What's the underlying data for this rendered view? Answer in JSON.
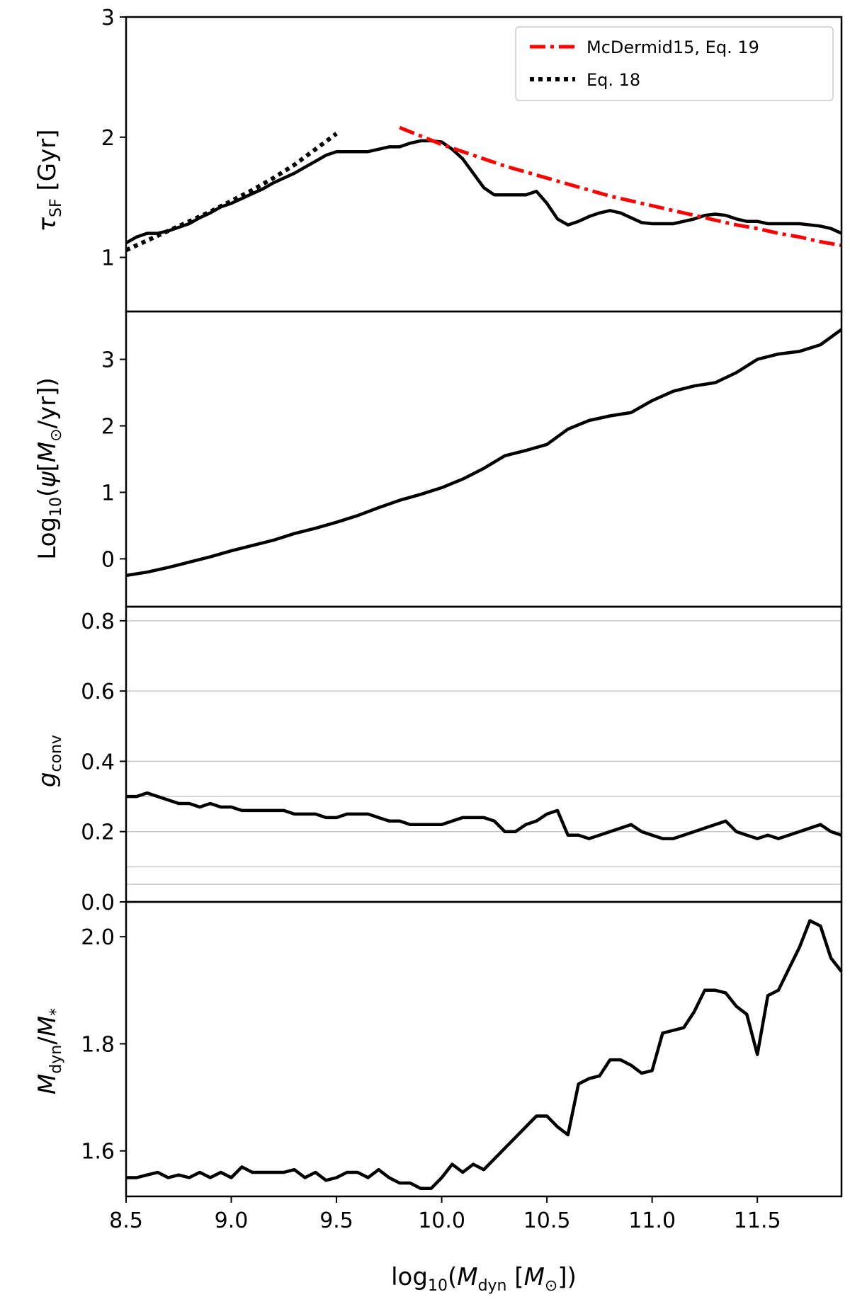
{
  "chart_data": [
    {
      "type": "line",
      "panel": "tau_sf",
      "ylabel": "τ_SF [Gyr]",
      "ylim": [
        0.55,
        3.0
      ],
      "xlim": [
        8.5,
        11.9
      ],
      "yticks": [
        1,
        2,
        3
      ],
      "grid": false,
      "legend_position": "top-right",
      "series": [
        {
          "name": "",
          "color": "#000000",
          "style": "solid",
          "x": [
            8.5,
            8.55,
            8.6,
            8.65,
            8.7,
            8.75,
            8.8,
            8.85,
            8.9,
            8.95,
            9.0,
            9.05,
            9.1,
            9.15,
            9.2,
            9.25,
            9.3,
            9.35,
            9.4,
            9.45,
            9.5,
            9.55,
            9.6,
            9.65,
            9.7,
            9.75,
            9.8,
            9.85,
            9.9,
            9.95,
            10.0,
            10.05,
            10.1,
            10.15,
            10.2,
            10.25,
            10.3,
            10.35,
            10.4,
            10.45,
            10.5,
            10.55,
            10.6,
            10.65,
            10.7,
            10.75,
            10.8,
            10.85,
            10.9,
            10.95,
            11.0,
            11.05,
            11.1,
            11.15,
            11.2,
            11.25,
            11.3,
            11.35,
            11.4,
            11.45,
            11.5,
            11.55,
            11.6,
            11.65,
            11.7,
            11.75,
            11.8,
            11.85,
            11.9
          ],
          "y": [
            1.12,
            1.17,
            1.2,
            1.2,
            1.22,
            1.25,
            1.28,
            1.33,
            1.37,
            1.42,
            1.45,
            1.49,
            1.53,
            1.57,
            1.62,
            1.66,
            1.7,
            1.75,
            1.8,
            1.85,
            1.88,
            1.88,
            1.88,
            1.88,
            1.9,
            1.92,
            1.92,
            1.95,
            1.97,
            1.97,
            1.96,
            1.9,
            1.82,
            1.7,
            1.58,
            1.52,
            1.52,
            1.52,
            1.52,
            1.55,
            1.45,
            1.32,
            1.27,
            1.3,
            1.34,
            1.37,
            1.39,
            1.37,
            1.33,
            1.29,
            1.28,
            1.28,
            1.28,
            1.3,
            1.32,
            1.35,
            1.36,
            1.35,
            1.32,
            1.3,
            1.3,
            1.28,
            1.28,
            1.28,
            1.28,
            1.27,
            1.26,
            1.24,
            1.2
          ]
        },
        {
          "name": "McDermid15, Eq. 19",
          "color": "#ff0000",
          "style": "dashdot",
          "x": [
            9.8,
            9.9,
            10.0,
            10.1,
            10.2,
            10.3,
            10.4,
            10.5,
            10.6,
            10.7,
            10.8,
            10.9,
            11.0,
            11.1,
            11.2,
            11.3,
            11.4,
            11.5,
            11.6,
            11.7,
            11.8,
            11.9
          ],
          "y": [
            2.08,
            2.01,
            1.94,
            1.88,
            1.82,
            1.76,
            1.71,
            1.66,
            1.61,
            1.56,
            1.51,
            1.47,
            1.43,
            1.39,
            1.35,
            1.31,
            1.27,
            1.24,
            1.2,
            1.17,
            1.13,
            1.1
          ]
        },
        {
          "name": "Eq. 18",
          "color": "#000000",
          "style": "dotted",
          "x": [
            8.5,
            8.6,
            8.7,
            8.8,
            8.9,
            9.0,
            9.1,
            9.2,
            9.3,
            9.4,
            9.5
          ],
          "y": [
            1.06,
            1.14,
            1.22,
            1.3,
            1.38,
            1.47,
            1.56,
            1.66,
            1.77,
            1.9,
            2.03
          ]
        }
      ]
    },
    {
      "type": "line",
      "panel": "log_sfr",
      "ylabel": "Log10(ψ[M⊙/yr])",
      "ylim": [
        -0.72,
        3.72
      ],
      "xlim": [
        8.5,
        11.9
      ],
      "yticks": [
        0,
        1,
        2,
        3
      ],
      "grid": false,
      "series": [
        {
          "name": "",
          "color": "#000000",
          "style": "solid",
          "x": [
            8.5,
            8.6,
            8.7,
            8.8,
            8.9,
            9.0,
            9.1,
            9.2,
            9.3,
            9.4,
            9.5,
            9.6,
            9.7,
            9.8,
            9.9,
            10.0,
            10.1,
            10.2,
            10.3,
            10.4,
            10.5,
            10.6,
            10.7,
            10.8,
            10.9,
            11.0,
            11.1,
            11.2,
            11.3,
            11.4,
            11.5,
            11.6,
            11.7,
            11.8,
            11.9
          ],
          "y": [
            -0.25,
            -0.2,
            -0.13,
            -0.05,
            0.03,
            0.12,
            0.2,
            0.28,
            0.38,
            0.46,
            0.55,
            0.65,
            0.77,
            0.88,
            0.97,
            1.07,
            1.2,
            1.36,
            1.55,
            1.63,
            1.72,
            1.95,
            2.08,
            2.15,
            2.2,
            2.38,
            2.52,
            2.6,
            2.65,
            2.8,
            3.0,
            3.08,
            3.12,
            3.22,
            3.45
          ]
        }
      ]
    },
    {
      "type": "line",
      "panel": "g_conv",
      "ylabel": "g_conv",
      "ylim": [
        0.0,
        0.84
      ],
      "xlim": [
        8.5,
        11.9
      ],
      "yticks": [
        0.0,
        0.2,
        0.4,
        0.6,
        0.8
      ],
      "grid": true,
      "hlines": [
        0.05,
        0.1,
        0.2,
        0.3,
        0.4,
        0.6,
        0.8
      ],
      "series": [
        {
          "name": "",
          "color": "#000000",
          "style": "solid",
          "x": [
            8.5,
            8.55,
            8.6,
            8.65,
            8.7,
            8.75,
            8.8,
            8.85,
            8.9,
            8.95,
            9.0,
            9.05,
            9.1,
            9.15,
            9.2,
            9.25,
            9.3,
            9.35,
            9.4,
            9.45,
            9.5,
            9.55,
            9.6,
            9.65,
            9.7,
            9.75,
            9.8,
            9.85,
            9.9,
            9.95,
            10.0,
            10.05,
            10.1,
            10.15,
            10.2,
            10.25,
            10.3,
            10.35,
            10.4,
            10.45,
            10.5,
            10.55,
            10.6,
            10.65,
            10.7,
            10.75,
            10.8,
            10.85,
            10.9,
            10.95,
            11.0,
            11.05,
            11.1,
            11.15,
            11.2,
            11.25,
            11.3,
            11.35,
            11.4,
            11.45,
            11.5,
            11.55,
            11.6,
            11.65,
            11.7,
            11.75,
            11.8,
            11.85,
            11.9
          ],
          "y": [
            0.3,
            0.3,
            0.31,
            0.3,
            0.29,
            0.28,
            0.28,
            0.27,
            0.28,
            0.27,
            0.27,
            0.26,
            0.26,
            0.26,
            0.26,
            0.26,
            0.25,
            0.25,
            0.25,
            0.24,
            0.24,
            0.25,
            0.25,
            0.25,
            0.24,
            0.23,
            0.23,
            0.22,
            0.22,
            0.22,
            0.22,
            0.23,
            0.24,
            0.24,
            0.24,
            0.23,
            0.2,
            0.2,
            0.22,
            0.23,
            0.25,
            0.26,
            0.19,
            0.19,
            0.18,
            0.19,
            0.2,
            0.21,
            0.22,
            0.2,
            0.19,
            0.18,
            0.18,
            0.19,
            0.2,
            0.21,
            0.22,
            0.23,
            0.2,
            0.19,
            0.18,
            0.19,
            0.18,
            0.19,
            0.2,
            0.21,
            0.22,
            0.2,
            0.19
          ]
        }
      ]
    },
    {
      "type": "line",
      "panel": "mass_ratio",
      "ylabel": "M_dyn/M_*",
      "ylim": [
        1.515,
        2.065
      ],
      "xlim": [
        8.5,
        11.9
      ],
      "yticks": [
        1.6,
        1.8,
        2.0
      ],
      "grid": false,
      "xlabel": "log10(M_dyn [M⊙])",
      "xticks": [
        8.5,
        9.0,
        9.5,
        10.0,
        10.5,
        11.0,
        11.5
      ],
      "xtick_labels": [
        "8.5",
        "9.0",
        "9.5",
        "10.0",
        "10.5",
        "11.0",
        "11.5"
      ],
      "series": [
        {
          "name": "",
          "color": "#000000",
          "style": "solid",
          "x": [
            8.5,
            8.55,
            8.6,
            8.65,
            8.7,
            8.75,
            8.8,
            8.85,
            8.9,
            8.95,
            9.0,
            9.05,
            9.1,
            9.15,
            9.2,
            9.25,
            9.3,
            9.35,
            9.4,
            9.45,
            9.5,
            9.55,
            9.6,
            9.65,
            9.7,
            9.75,
            9.8,
            9.85,
            9.9,
            9.95,
            10.0,
            10.05,
            10.1,
            10.15,
            10.2,
            10.25,
            10.3,
            10.35,
            10.4,
            10.45,
            10.5,
            10.55,
            10.6,
            10.65,
            10.7,
            10.75,
            10.8,
            10.85,
            10.9,
            10.95,
            11.0,
            11.05,
            11.1,
            11.15,
            11.2,
            11.25,
            11.3,
            11.35,
            11.4,
            11.45,
            11.5,
            11.55,
            11.6,
            11.65,
            11.7,
            11.75,
            11.8,
            11.85,
            11.9
          ],
          "y": [
            1.55,
            1.55,
            1.555,
            1.56,
            1.55,
            1.555,
            1.55,
            1.56,
            1.55,
            1.56,
            1.55,
            1.57,
            1.56,
            1.56,
            1.56,
            1.56,
            1.565,
            1.55,
            1.56,
            1.545,
            1.55,
            1.56,
            1.56,
            1.55,
            1.565,
            1.55,
            1.54,
            1.54,
            1.53,
            1.53,
            1.55,
            1.575,
            1.56,
            1.575,
            1.565,
            1.585,
            1.605,
            1.625,
            1.645,
            1.665,
            1.665,
            1.645,
            1.63,
            1.725,
            1.735,
            1.74,
            1.77,
            1.77,
            1.76,
            1.745,
            1.75,
            1.82,
            1.825,
            1.83,
            1.86,
            1.9,
            1.9,
            1.895,
            1.87,
            1.855,
            1.78,
            1.89,
            1.9,
            1.94,
            1.98,
            2.03,
            2.02,
            1.96,
            1.935
          ]
        }
      ]
    }
  ]
}
